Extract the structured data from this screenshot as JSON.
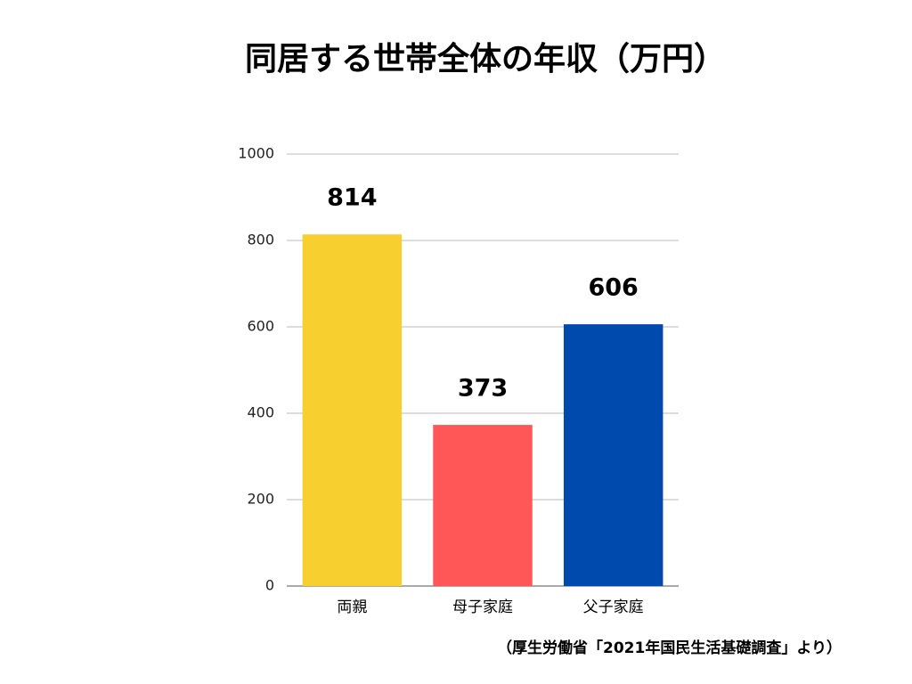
{
  "chart_data": {
    "type": "bar",
    "title": "同居する世帯全体の年収（万円）",
    "categories": [
      "両親",
      "母子家庭",
      "父子家庭"
    ],
    "values": [
      814,
      373,
      606
    ],
    "colors": [
      "#f7d02f",
      "#ff5757",
      "#004aad"
    ],
    "ylim": [
      0,
      1000
    ],
    "yticks": [
      0,
      200,
      400,
      600,
      800,
      1000
    ],
    "grid": true,
    "source": "（厚生労働省「2021年国民生活基礎調査」より）"
  }
}
